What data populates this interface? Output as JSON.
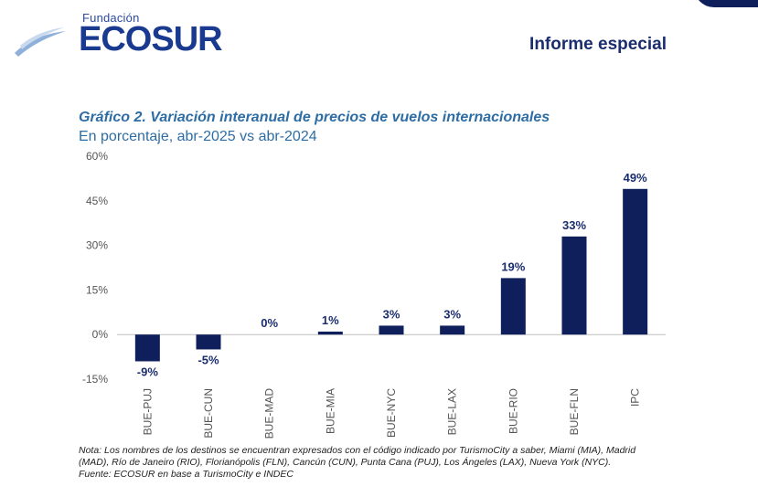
{
  "header": {
    "logo_small": "Fundación",
    "logo_big": "ECOSUR",
    "report_label": "Informe especial"
  },
  "chart_data": {
    "type": "bar",
    "title": "Gráfico 2. Variación interanual de precios de vuelos internacionales",
    "subtitle": "En porcentaje, abr-2025 vs abr-2024",
    "categories": [
      "BUE-PUJ",
      "BUE-CUN",
      "BUE-MAD",
      "BUE-MIA",
      "BUE-NYC",
      "BUE-LAX",
      "BUE-RIO",
      "BUE-FLN",
      "IPC"
    ],
    "values": [
      -9,
      -5,
      0,
      1,
      3,
      3,
      19,
      33,
      49
    ],
    "data_labels": [
      "-9%",
      "-5%",
      "0%",
      "1%",
      "3%",
      "3%",
      "19%",
      "33%",
      "49%"
    ],
    "ylim": [
      -15,
      60
    ],
    "yticks": [
      -15,
      0,
      15,
      30,
      45,
      60
    ],
    "ytick_labels": [
      "-15%",
      "0%",
      "15%",
      "30%",
      "45%",
      "60%"
    ],
    "bar_color": "#0f1f5c",
    "grid": false,
    "xlabel": "",
    "ylabel": ""
  },
  "notes": {
    "nota": "Nota: Los nombres de los destinos se encuentran expresados con el código indicado por TurismoCity a saber, Miami (MIA), Madrid (MAD), Río de Janeiro (RIO), Florianópolis (FLN), Cancún (CUN), Punta Cana (PUJ), Los Ángeles (LAX), Nueva York (NYC).",
    "fuente": "Fuente: ECOSUR en base a TurismoCity e INDEC"
  }
}
